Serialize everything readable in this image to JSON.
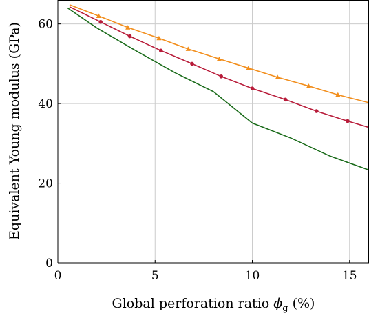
{
  "chart_data": {
    "type": "line",
    "xlabel": {
      "main": "Global perforation ratio ",
      "symbol": "ϕ",
      "subscript": "g",
      "suffix": " (%)"
    },
    "ylabel": "Equivalent Young modulus (GPa)",
    "xlim": [
      0,
      16
    ],
    "ylim": [
      0,
      66
    ],
    "xticks": [
      0,
      5,
      10,
      15
    ],
    "xtick_labels": [
      "0",
      "5",
      "10",
      "15"
    ],
    "yticks": [
      0,
      20,
      40,
      60
    ],
    "ytick_labels": [
      "0",
      "20",
      "40",
      "60"
    ],
    "grid": true,
    "series": [
      {
        "color": "#f28e1c",
        "marker": "triangle",
        "points": [
          [
            0.6,
            64.8
          ],
          [
            2.1,
            62.0
          ],
          [
            3.6,
            59.1
          ],
          [
            5.2,
            56.4
          ],
          [
            6.7,
            53.7
          ],
          [
            8.3,
            51.2
          ],
          [
            9.8,
            48.9
          ],
          [
            11.3,
            46.6
          ],
          [
            12.9,
            44.4
          ],
          [
            14.4,
            42.2
          ],
          [
            16.0,
            40.2
          ]
        ],
        "marker_points": [
          [
            2.1,
            62.0
          ],
          [
            3.6,
            59.1
          ],
          [
            5.2,
            56.4
          ],
          [
            6.7,
            53.7
          ],
          [
            8.3,
            51.2
          ],
          [
            9.8,
            48.9
          ],
          [
            11.3,
            46.6
          ],
          [
            12.9,
            44.4
          ],
          [
            14.4,
            42.2
          ]
        ]
      },
      {
        "color": "#b81c3a",
        "marker": "circle",
        "points": [
          [
            0.6,
            64.3
          ],
          [
            2.2,
            60.5
          ],
          [
            3.7,
            56.9
          ],
          [
            5.3,
            53.3
          ],
          [
            6.9,
            50.0
          ],
          [
            8.4,
            46.8
          ],
          [
            10.0,
            43.8
          ],
          [
            11.7,
            41.0
          ],
          [
            13.3,
            38.1
          ],
          [
            14.9,
            35.6
          ],
          [
            16.0,
            34.0
          ]
        ],
        "marker_points": [
          [
            2.2,
            60.5
          ],
          [
            3.7,
            56.9
          ],
          [
            5.3,
            53.3
          ],
          [
            6.9,
            50.0
          ],
          [
            8.4,
            46.8
          ],
          [
            10.0,
            43.8
          ],
          [
            11.7,
            41.0
          ],
          [
            13.3,
            38.1
          ],
          [
            14.9,
            35.6
          ]
        ]
      },
      {
        "color": "#1a6b1a",
        "marker": "none",
        "points": [
          [
            0.5,
            64.0
          ],
          [
            2,
            59.0
          ],
          [
            4,
            53.3
          ],
          [
            6,
            47.8
          ],
          [
            8,
            43.0
          ],
          [
            10,
            35.1
          ],
          [
            12,
            31.3
          ],
          [
            14,
            26.8
          ],
          [
            16,
            23.3
          ]
        ],
        "marker_points": []
      }
    ]
  }
}
